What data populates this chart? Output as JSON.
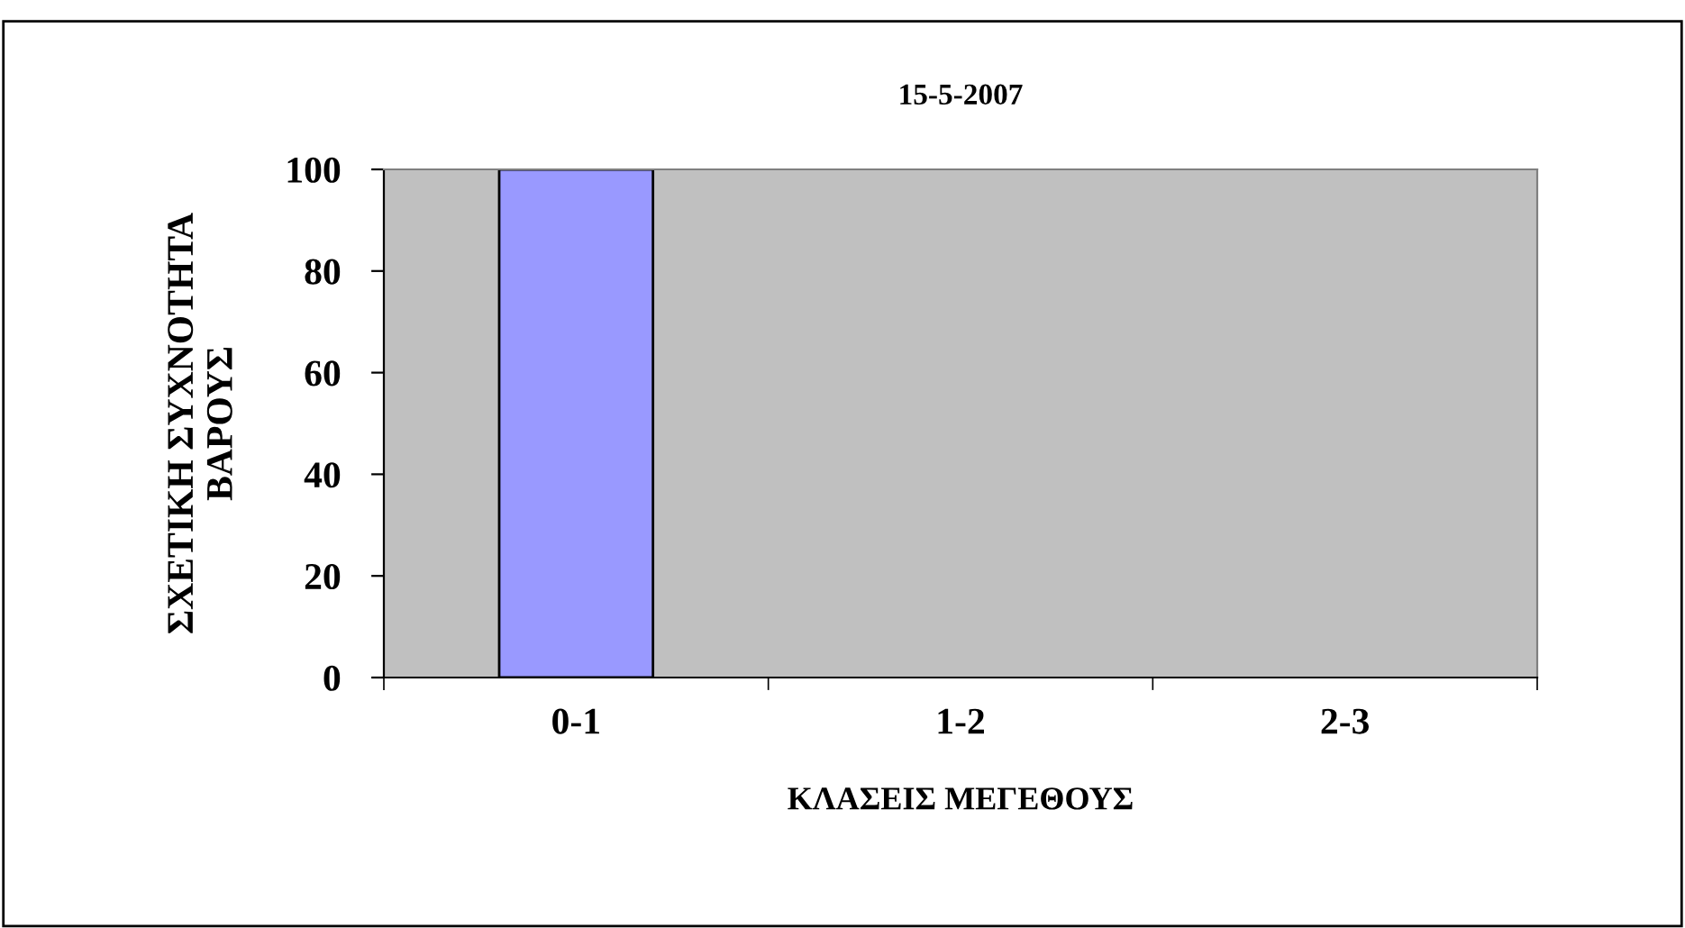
{
  "chart_data": {
    "type": "bar",
    "title": "15-5-2007",
    "xlabel": "ΚΛΑΣΕΙΣ ΜΕΓΕΘΟΥΣ",
    "ylabel": "ΣΧΕΤΙΚΗ ΣΥΧΝΟΤΗΤΑ\nΒΑΡΟΥΣ",
    "categories": [
      "0-1",
      "1-2",
      "2-3"
    ],
    "series": [
      {
        "color": "#9999ff",
        "values": [
          100,
          0,
          0
        ]
      }
    ],
    "ylim": [
      0,
      100
    ],
    "yticks": [
      0,
      20,
      40,
      60,
      80,
      100
    ],
    "grid": false,
    "legend": false
  }
}
